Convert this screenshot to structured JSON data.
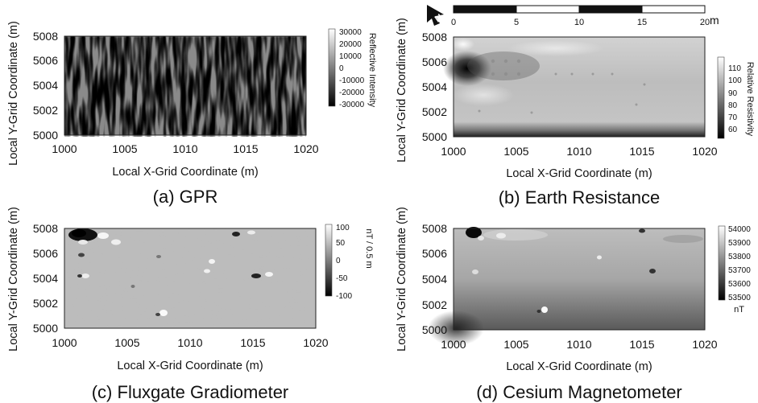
{
  "chart_data": [
    {
      "type": "heatmap",
      "panel": "a",
      "caption": "(a) GPR",
      "xlabel": "Local X-Grid Coordinate (m)",
      "ylabel": "Local Y-Grid Coordinate (m)",
      "xlim": [
        1000,
        1020
      ],
      "ylim": [
        5000,
        5008
      ],
      "xticks": [
        1000,
        1005,
        1010,
        1015,
        1020
      ],
      "yticks": [
        5000,
        5002,
        5004,
        5006,
        5008
      ],
      "colorbar": {
        "label": "Reflective Intensity",
        "min": -30000,
        "max": 30000,
        "ticks": [
          30000,
          20000,
          10000,
          0,
          -10000,
          -20000,
          -30000
        ],
        "colors": [
          "#000000",
          "#ffffff"
        ]
      }
    },
    {
      "type": "heatmap",
      "panel": "b",
      "caption": "(b) Earth Resistance",
      "xlabel": "Local X-Grid Coordinate (m)",
      "ylabel": "Local Y-Grid Coordinate (m)",
      "xlim": [
        1000,
        1020
      ],
      "ylim": [
        5000,
        5008
      ],
      "xticks": [
        1000,
        1005,
        1010,
        1015,
        1020
      ],
      "yticks": [
        5000,
        5002,
        5004,
        5006,
        5008
      ],
      "colorbar": {
        "label": "Relative Resistivity",
        "min": 55,
        "max": 118,
        "ticks": [
          110,
          100,
          90,
          80,
          70,
          60
        ],
        "colors": [
          "#000000",
          "#ffffff"
        ]
      },
      "scale_bar": {
        "ticks": [
          0,
          5,
          10,
          15,
          20
        ],
        "unit": "m"
      },
      "north_arrow": "N"
    },
    {
      "type": "heatmap",
      "panel": "c",
      "caption": "(c) Fluxgate Gradiometer",
      "xlabel": "Local X-Grid Coordinate (m)",
      "ylabel": "Local Y-Grid Coordinate (m)",
      "xlim": [
        1000,
        1020
      ],
      "ylim": [
        5000,
        5008
      ],
      "xticks": [
        1000,
        1005,
        1010,
        1015,
        1020
      ],
      "yticks": [
        5000,
        5002,
        5004,
        5006,
        5008
      ],
      "colorbar": {
        "label": "nT / 0.5 m",
        "min": -100,
        "max": 100,
        "ticks": [
          100,
          50,
          0,
          -50,
          -100
        ],
        "colors": [
          "#000000",
          "#ffffff"
        ]
      }
    },
    {
      "type": "heatmap",
      "panel": "d",
      "caption": "(d) Cesium Magnetometer",
      "xlabel": "Local X-Grid Coordinate (m)",
      "ylabel": "Local Y-Grid Coordinate (m)",
      "xlim": [
        1000,
        1020
      ],
      "ylim": [
        5000,
        5008
      ],
      "xticks": [
        1000,
        1005,
        1010,
        1015,
        1020
      ],
      "yticks": [
        5000,
        5002,
        5004,
        5006,
        5008
      ],
      "colorbar": {
        "label": "nT",
        "min": 53500,
        "max": 54000,
        "ticks": [
          54000,
          53900,
          53800,
          53700,
          53600,
          53500
        ],
        "colors": [
          "#000000",
          "#ffffff"
        ]
      }
    }
  ]
}
